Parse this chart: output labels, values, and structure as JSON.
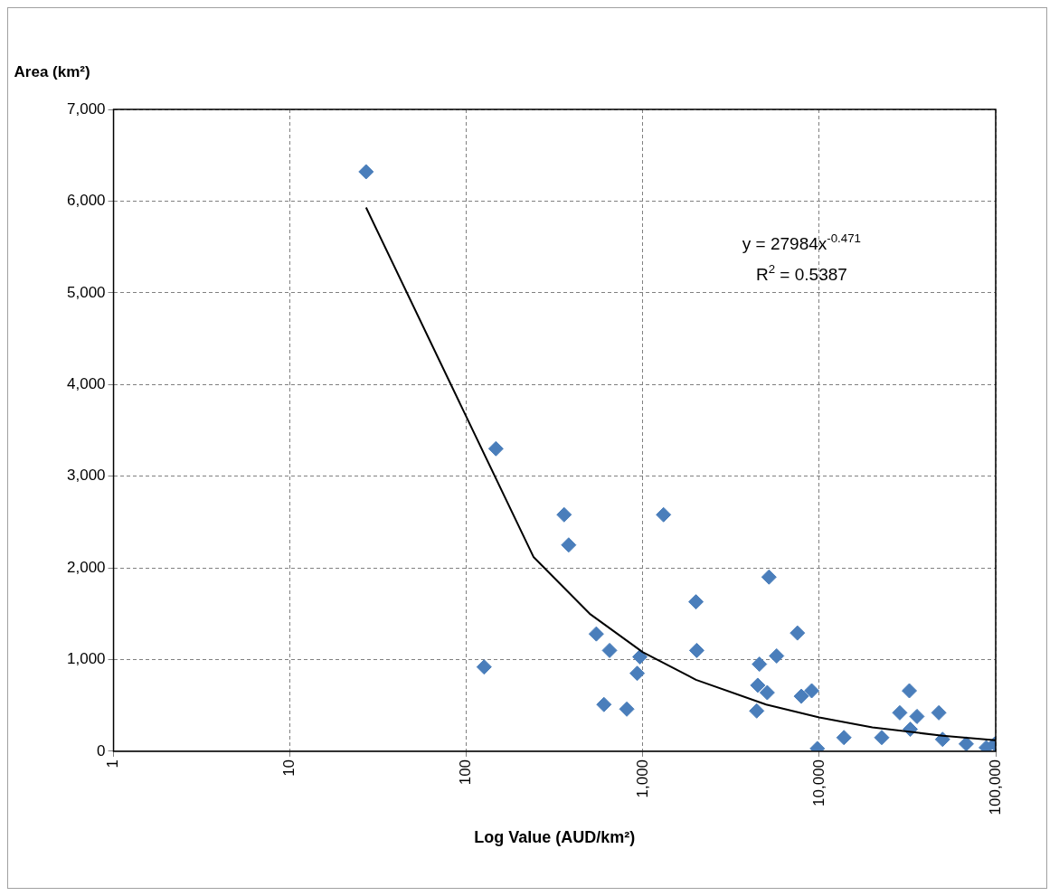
{
  "chart_data": {
    "type": "scatter",
    "xlabel": "Log Value (AUD/km²)",
    "ylabel": "Area (km²)",
    "log": "x",
    "xlim": [
      1,
      100000
    ],
    "ylim": [
      0,
      7000
    ],
    "xticks": [
      1,
      10,
      100,
      {
        "value": 1000,
        "label": "1,000"
      },
      {
        "value": 10000,
        "label": "10,000"
      },
      {
        "value": 100000,
        "label": "100,000"
      }
    ],
    "yticks": [
      0,
      {
        "value": 1000,
        "label": "1,000"
      },
      {
        "value": 2000,
        "label": "2,000"
      },
      {
        "value": 3000,
        "label": "3,000"
      },
      {
        "value": 4000,
        "label": "4,000"
      },
      {
        "value": 5000,
        "label": "5,000"
      },
      {
        "value": 6000,
        "label": "6,000"
      },
      {
        "value": 7000,
        "label": "7,000"
      }
    ],
    "grid": true,
    "legend": false,
    "marker": "diamond",
    "annotations": [
      "y = 27984x$^{-0.471}$",
      "R$^{2}$ = 0.5387"
    ],
    "series": [
      {
        "color": "#4a7ebb",
        "x": [
          27,
          147,
          126,
          358,
          380,
          545,
          648,
          963,
          929,
          602,
          811,
          1310,
          2000,
          2020,
          5190,
          7520,
          5730,
          4580,
          4480,
          5070,
          4420,
          7910,
          9060,
          9750,
          13800,
          22600,
          32400,
          28600,
          35800,
          32800,
          47600,
          50000,
          68100,
          88400,
          98800
        ],
        "values": [
          6320,
          3300,
          920,
          2580,
          2250,
          1280,
          1100,
          1030,
          850,
          510,
          460,
          2580,
          1630,
          1100,
          1900,
          1290,
          1040,
          950,
          720,
          640,
          440,
          600,
          660,
          30,
          150,
          150,
          660,
          420,
          380,
          240,
          420,
          130,
          80,
          40,
          80
        ]
      },
      {
        "type": "line",
        "color": "#000000",
        "marker": "none",
        "line_style": "solid",
        "x": [
          27,
          240,
          500,
          1000,
          2000,
          5000,
          10000,
          20000,
          50000,
          100000
        ],
        "values": [
          5930,
          2120,
          1500,
          1080,
          780,
          510,
          370,
          260,
          170,
          120
        ]
      }
    ]
  }
}
